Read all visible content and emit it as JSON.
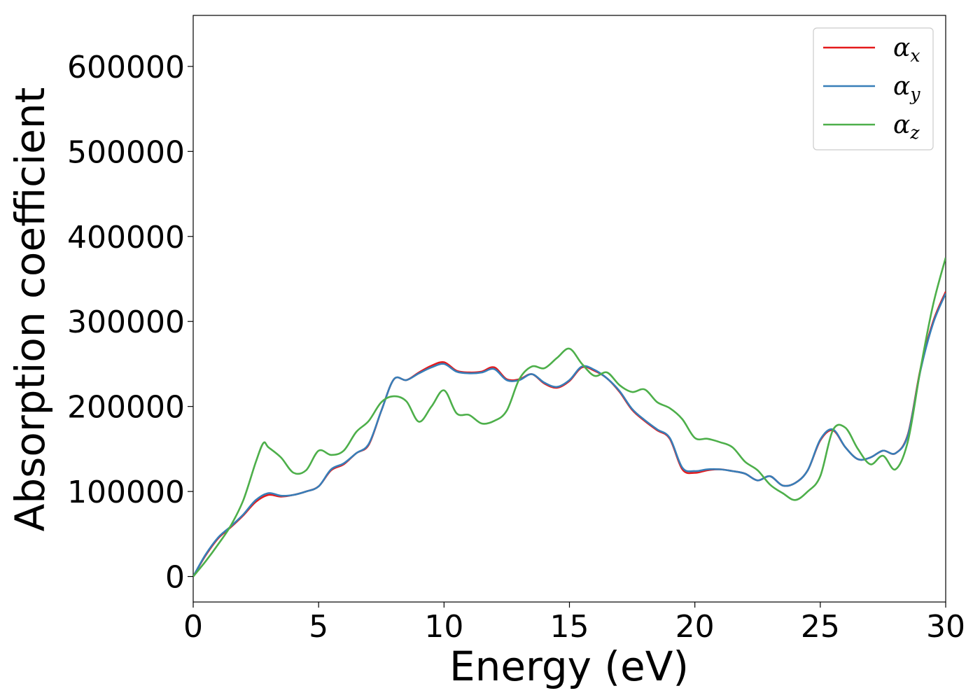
{
  "chart_data": {
    "type": "line",
    "title": "",
    "xlabel": "Energy (eV)",
    "ylabel": "Absorption coefficient",
    "xlim": [
      0,
      30
    ],
    "ylim": [
      -30000,
      660000
    ],
    "xticks": [
      0,
      5,
      10,
      15,
      20,
      25,
      30
    ],
    "yticks": [
      0,
      100000,
      200000,
      300000,
      400000,
      500000,
      600000
    ],
    "grid": false,
    "legend_position": "top-right",
    "series": [
      {
        "name": "α",
        "subscript": "x",
        "color": "#e41a1c",
        "x": [
          0,
          0.5,
          1,
          1.5,
          2,
          2.5,
          3,
          3.5,
          4,
          4.5,
          5,
          5.5,
          6,
          6.5,
          7,
          7.5,
          8,
          8.5,
          9,
          9.5,
          10,
          10.5,
          11,
          11.5,
          12,
          12.5,
          13,
          13.5,
          14,
          14.5,
          15,
          15.5,
          16,
          16.5,
          17,
          17.5,
          18,
          18.5,
          19,
          19.5,
          20,
          20.5,
          21,
          21.5,
          22,
          22.5,
          23,
          23.5,
          24,
          24.5,
          25,
          25.5,
          26,
          26.5,
          27,
          27.5,
          28,
          28.5,
          29,
          29.5,
          30
        ],
        "values": [
          0,
          25000,
          45000,
          58000,
          72000,
          88000,
          96000,
          94000,
          96000,
          100000,
          106000,
          125000,
          132000,
          145000,
          155000,
          195000,
          232000,
          231000,
          240000,
          248000,
          252000,
          242000,
          240000,
          241000,
          246000,
          232000,
          232000,
          238000,
          227000,
          222000,
          230000,
          246000,
          242000,
          233000,
          217000,
          196000,
          183000,
          172000,
          162000,
          126000,
          122000,
          125000,
          126000,
          124000,
          121000,
          113000,
          118000,
          107000,
          110000,
          125000,
          160000,
          172000,
          152000,
          138000,
          140000,
          148000,
          145000,
          168000,
          245000,
          300000,
          335000
        ]
      },
      {
        "name": "α",
        "subscript": "y",
        "color": "#377eb8",
        "x": [
          0,
          0.5,
          1,
          1.5,
          2,
          2.5,
          3,
          3.5,
          4,
          4.5,
          5,
          5.5,
          6,
          6.5,
          7,
          7.5,
          8,
          8.5,
          9,
          9.5,
          10,
          10.5,
          11,
          11.5,
          12,
          12.5,
          13,
          13.5,
          14,
          14.5,
          15,
          15.5,
          16,
          16.5,
          17,
          17.5,
          18,
          18.5,
          19,
          19.5,
          20,
          20.5,
          21,
          21.5,
          22,
          22.5,
          23,
          23.5,
          24,
          24.5,
          25,
          25.5,
          26,
          26.5,
          27,
          27.5,
          28,
          28.5,
          29,
          29.5,
          30
        ],
        "values": [
          0,
          26000,
          46000,
          59000,
          73000,
          90000,
          98000,
          95000,
          96000,
          100000,
          106000,
          126000,
          133000,
          145000,
          156000,
          195000,
          232000,
          231000,
          239000,
          246000,
          250000,
          241000,
          239000,
          240000,
          244000,
          231000,
          231000,
          238000,
          228000,
          223000,
          231000,
          247000,
          243000,
          233000,
          218000,
          197000,
          184000,
          173000,
          163000,
          128000,
          124000,
          126000,
          126000,
          124000,
          121000,
          113000,
          118000,
          107000,
          110000,
          125000,
          161000,
          173000,
          152000,
          138000,
          140000,
          148000,
          145000,
          167000,
          243000,
          298000,
          333000
        ]
      },
      {
        "name": "α",
        "subscript": "z",
        "color": "#4daf4a",
        "x": [
          0,
          0.5,
          1,
          1.5,
          2,
          2.5,
          2.8,
          3,
          3.5,
          4,
          4.5,
          5,
          5.5,
          6,
          6.5,
          7,
          7.5,
          8,
          8.5,
          9,
          9.5,
          10,
          10.5,
          11,
          11.5,
          12,
          12.5,
          13,
          13.5,
          14,
          14.5,
          15,
          15.5,
          16,
          16.5,
          17,
          17.5,
          18,
          18.5,
          19,
          19.5,
          20,
          20.5,
          21,
          21.5,
          22,
          22.5,
          23,
          23.5,
          24,
          24.5,
          25,
          25.5,
          26,
          26.5,
          27,
          27.5,
          28,
          28.5,
          29,
          29.5,
          30
        ],
        "values": [
          0,
          18000,
          38000,
          60000,
          90000,
          135000,
          157000,
          152000,
          140000,
          122000,
          125000,
          148000,
          143000,
          148000,
          170000,
          183000,
          205000,
          212000,
          206000,
          182000,
          200000,
          219000,
          192000,
          190000,
          180000,
          183000,
          195000,
          232000,
          247000,
          245000,
          257000,
          268000,
          250000,
          236000,
          240000,
          225000,
          217000,
          220000,
          205000,
          198000,
          185000,
          163000,
          162000,
          158000,
          152000,
          135000,
          125000,
          108000,
          98000,
          90000,
          100000,
          118000,
          172000,
          175000,
          150000,
          132000,
          142000,
          126000,
          160000,
          245000,
          320000,
          375000
        ]
      }
    ]
  }
}
